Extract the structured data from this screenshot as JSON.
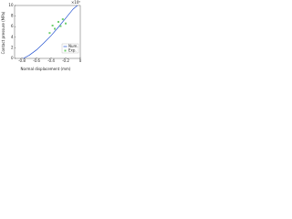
{
  "chart_data": {
    "type": "line",
    "xlabel": "Normal displacement (mm)",
    "ylabel": "Contact pressure (MPa)",
    "annotation": "×10⁶",
    "xlim": [
      -0.9,
      0
    ],
    "xticks": [
      -0.8,
      -0.6,
      -0.4,
      -0.2,
      0
    ],
    "ylim": [
      0,
      10
    ],
    "yticks": [
      0,
      2,
      4,
      6,
      8,
      10
    ],
    "legend": "lower-right",
    "series": [
      {
        "name": "Num.",
        "color": "#1f4fd0",
        "mode": "lines",
        "x": [
          -0.78,
          -0.7,
          -0.6,
          -0.5,
          -0.4,
          -0.3,
          -0.2,
          -0.1,
          -0.04
        ],
        "values": [
          0,
          0.6,
          1.6,
          2.9,
          4.3,
          5.9,
          7.6,
          9.3,
          10
        ]
      },
      {
        "name": "Exp.",
        "color": "#6fcf6f",
        "mode": "markers",
        "x": [
          -0.42,
          -0.38,
          -0.35,
          -0.3,
          -0.27,
          -0.24,
          -0.2
        ],
        "values": [
          4.8,
          6.2,
          5.6,
          6.9,
          6.1,
          7.4,
          6.6
        ]
      }
    ]
  }
}
